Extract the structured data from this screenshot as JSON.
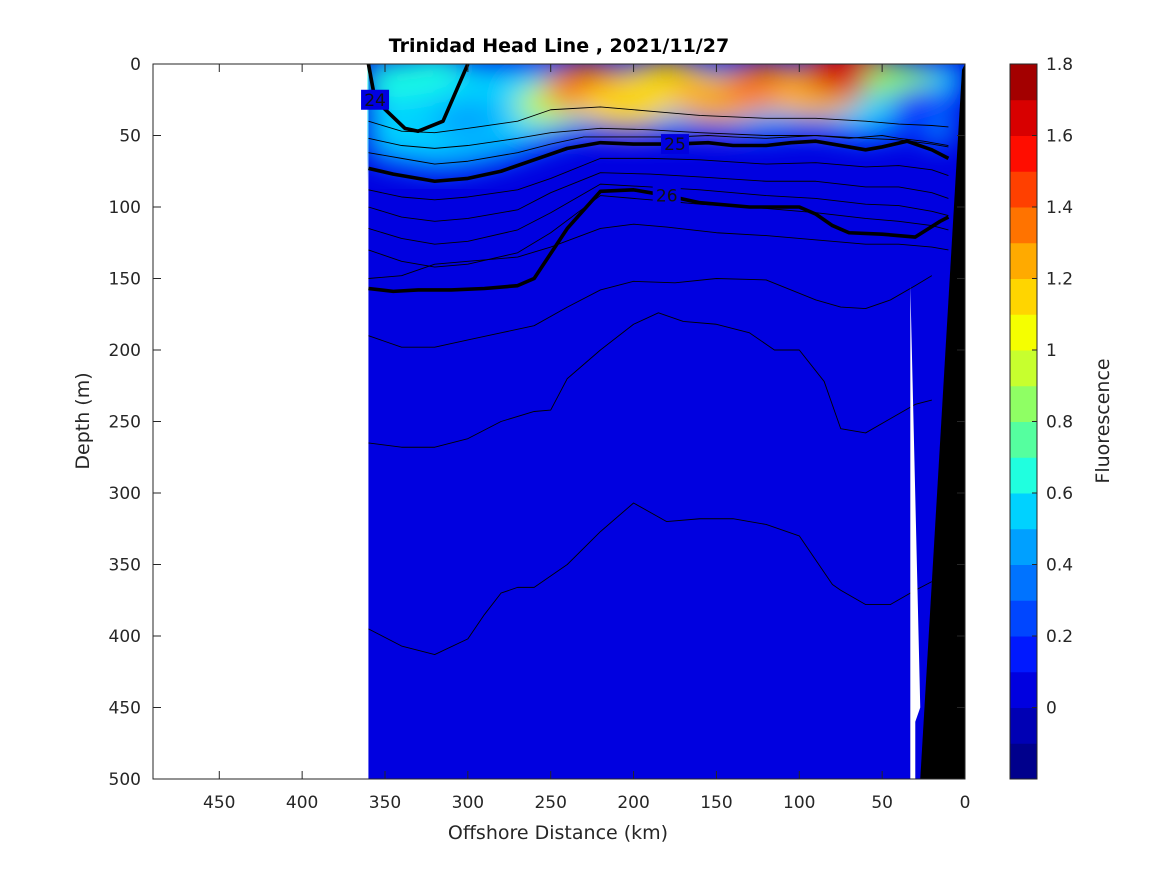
{
  "chart_data": {
    "type": "contour",
    "title": "Trinidad Head Line , 2021/11/27",
    "xlabel": "Offshore Distance (km)",
    "ylabel": "Depth (m)",
    "xlim": [
      490,
      0
    ],
    "ylim": [
      500,
      0
    ],
    "x_reversed": true,
    "y_reversed": true,
    "xticks": [
      "450",
      "400",
      "350",
      "300",
      "250",
      "200",
      "150",
      "100",
      "50",
      "0"
    ],
    "yticks": [
      "0",
      "50",
      "100",
      "150",
      "200",
      "250",
      "300",
      "350",
      "400",
      "450",
      "500"
    ],
    "colorbar": {
      "label": "Fluorescence",
      "range": [
        -0.2,
        1.8
      ],
      "ticks": [
        "1.8",
        "1.6",
        "1.4",
        "1.2",
        "1",
        "0.8",
        "0.6",
        "0.4",
        "0.2",
        "0"
      ],
      "colors": [
        "#00008c",
        "#0000b4",
        "#0000e0",
        "#0019ff",
        "#0046ff",
        "#0073ff",
        "#00a0ff",
        "#00d2ff",
        "#20ffdf",
        "#55ff9f",
        "#8fff64",
        "#c7ff2e",
        "#f5ff00",
        "#ffd500",
        "#ffaa00",
        "#ff7300",
        "#ff4000",
        "#ff0d00",
        "#d80000",
        "#a30000"
      ]
    },
    "data_extent_km": [
      0,
      360
    ],
    "background_level": 0.05,
    "surface_patches": [
      {
        "x": 342,
        "y": 10,
        "value": 0.6
      },
      {
        "x": 320,
        "y": 6,
        "value": 0.65
      },
      {
        "x": 292,
        "y": 20,
        "value": 0.5
      },
      {
        "x": 300,
        "y": 40,
        "value": 0.4
      },
      {
        "x": 250,
        "y": 28,
        "value": 0.95
      },
      {
        "x": 228,
        "y": 16,
        "value": 1.35
      },
      {
        "x": 205,
        "y": 28,
        "value": 1.15
      },
      {
        "x": 180,
        "y": 14,
        "value": 1.1
      },
      {
        "x": 150,
        "y": 24,
        "value": 1.2
      },
      {
        "x": 120,
        "y": 16,
        "value": 1.35
      },
      {
        "x": 90,
        "y": 20,
        "value": 1.25
      },
      {
        "x": 70,
        "y": 4,
        "value": 1.65
      },
      {
        "x": 40,
        "y": 12,
        "value": 0.8
      },
      {
        "x": 25,
        "y": 30,
        "value": 0.15
      }
    ],
    "density_contours": [
      {
        "x": [
          360,
          356,
          338,
          330,
          315,
          300
        ],
        "y": [
          0,
          25,
          45,
          47,
          40,
          0
        ],
        "bold": true,
        "label": "24"
      },
      {
        "x": [
          360,
          340,
          320,
          300,
          270,
          250,
          220,
          190,
          160,
          120,
          90,
          60,
          40,
          20,
          10
        ],
        "y": [
          40,
          47,
          48,
          45,
          40,
          32,
          30,
          33,
          36,
          38,
          38,
          40,
          42,
          43,
          44
        ],
        "bold": false
      },
      {
        "x": [
          360,
          340,
          320,
          300,
          270,
          250,
          220,
          190,
          160,
          120,
          90,
          60,
          40,
          20,
          10
        ],
        "y": [
          52,
          57,
          59,
          57,
          52,
          48,
          45,
          46,
          48,
          50,
          50,
          52,
          53,
          56,
          58
        ],
        "bold": false
      },
      {
        "x": [
          360,
          340,
          320,
          300,
          270,
          250,
          230,
          200,
          175,
          155,
          140,
          120,
          90,
          70,
          50,
          40,
          25,
          10
        ],
        "y": [
          62,
          66,
          70,
          68,
          62,
          56,
          51,
          51,
          51,
          50,
          51,
          52,
          50,
          52,
          50,
          52,
          54,
          57
        ],
        "bold": false
      },
      {
        "x": [
          360,
          345,
          320,
          300,
          280,
          260,
          240,
          220,
          200,
          175,
          155,
          140,
          120,
          105,
          90,
          70,
          60,
          50,
          35,
          20,
          10
        ],
        "y": [
          73,
          77,
          82,
          80,
          75,
          67,
          59,
          55,
          56,
          56,
          55,
          57,
          57,
          55,
          54,
          58,
          60,
          58,
          54,
          60,
          66
        ],
        "bold": true,
        "label": "25"
      },
      {
        "x": [
          360,
          340,
          320,
          300,
          270,
          250,
          220,
          190,
          160,
          120,
          90,
          60,
          40,
          20,
          10
        ],
        "y": [
          88,
          93,
          95,
          93,
          88,
          80,
          66,
          66,
          67,
          70,
          69,
          72,
          71,
          74,
          78
        ],
        "bold": false
      },
      {
        "x": [
          360,
          340,
          320,
          300,
          270,
          250,
          220,
          190,
          160,
          120,
          90,
          60,
          40,
          20,
          10
        ],
        "y": [
          100,
          107,
          110,
          108,
          102,
          90,
          76,
          77,
          79,
          82,
          82,
          86,
          86,
          90,
          94
        ],
        "bold": false
      },
      {
        "x": [
          360,
          340,
          320,
          300,
          270,
          250,
          220,
          190,
          160,
          120,
          90,
          60,
          40,
          20,
          10
        ],
        "y": [
          115,
          122,
          126,
          124,
          116,
          104,
          84,
          86,
          88,
          92,
          94,
          98,
          99,
          103,
          106
        ],
        "bold": false
      },
      {
        "x": [
          360,
          340,
          320,
          300,
          270,
          250,
          220,
          190,
          160,
          120,
          90,
          60,
          40,
          20,
          10
        ],
        "y": [
          130,
          138,
          142,
          140,
          132,
          118,
          92,
          95,
          98,
          101,
          104,
          108,
          110,
          113,
          116
        ],
        "bold": false
      },
      {
        "x": [
          360,
          345,
          330,
          310,
          290,
          270,
          260,
          240,
          220,
          200,
          180,
          160,
          130,
          100,
          90,
          80,
          70,
          50,
          30,
          15,
          10
        ],
        "y": [
          157,
          159,
          158,
          158,
          157,
          155,
          150,
          115,
          89,
          88,
          92,
          97,
          100,
          100,
          105,
          113,
          118,
          119,
          121,
          110,
          107
        ],
        "bold": true,
        "label": "26"
      },
      {
        "x": [
          360,
          340,
          320,
          300,
          270,
          250,
          220,
          200,
          180,
          150,
          120,
          100,
          80,
          60,
          40,
          20,
          10
        ],
        "y": [
          150,
          148,
          140,
          138,
          135,
          128,
          115,
          112,
          114,
          118,
          120,
          122,
          124,
          126,
          126,
          128,
          130
        ],
        "bold": false
      },
      {
        "x": [
          360,
          340,
          320,
          300,
          280,
          260,
          240,
          220,
          200,
          175,
          150,
          120,
          90,
          75,
          60,
          45,
          30,
          20
        ],
        "y": [
          190,
          198,
          198,
          193,
          188,
          183,
          170,
          158,
          152,
          153,
          150,
          151,
          165,
          170,
          171,
          165,
          155,
          148
        ],
        "bold": false
      },
      {
        "x": [
          360,
          340,
          320,
          300,
          280,
          260,
          250,
          240,
          220,
          200,
          185,
          170,
          150,
          130,
          115,
          100,
          85,
          75,
          60,
          45,
          30,
          20
        ],
        "y": [
          265,
          268,
          268,
          262,
          250,
          243,
          242,
          220,
          200,
          182,
          174,
          180,
          182,
          188,
          200,
          200,
          222,
          255,
          258,
          248,
          238,
          235
        ],
        "bold": false
      },
      {
        "x": [
          360,
          340,
          320,
          300,
          290,
          280,
          270,
          260,
          240,
          220,
          200,
          180,
          160,
          140,
          120,
          100,
          80,
          75,
          60,
          45,
          30,
          20
        ],
        "y": [
          395,
          407,
          413,
          402,
          385,
          370,
          366,
          366,
          350,
          327,
          307,
          320,
          318,
          318,
          322,
          330,
          364,
          368,
          378,
          378,
          368,
          362
        ],
        "bold": false
      }
    ]
  }
}
